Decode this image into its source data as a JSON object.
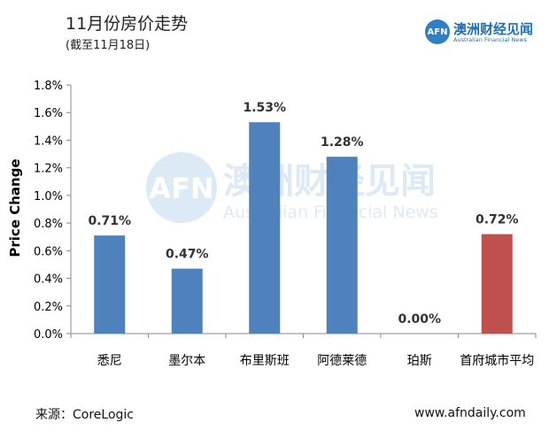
{
  "header": {
    "title": "11月份房价走势",
    "subtitle": "(截至11月18日)"
  },
  "logo": {
    "badge": "AFN",
    "name_cn": "澳洲财经见闻",
    "name_en": "Australian Financial News"
  },
  "watermark": {
    "badge": "AFN",
    "name_cn": "澳洲财经见闻",
    "name_en": "Australian Financial News"
  },
  "footer": {
    "source": "来源：CoreLogic",
    "website": "www.afndaily.com"
  },
  "colors": {
    "bar": "#4f81bd",
    "average_bar": "#c0504d",
    "brand": "#2f7fc4"
  },
  "chart_data": {
    "type": "bar",
    "title": "11月份房价走势",
    "subtitle": "(截至11月18日)",
    "xlabel": "",
    "ylabel": "Price Change",
    "ylim": [
      0,
      1.8
    ],
    "yticks": [
      0,
      0.2,
      0.4,
      0.6,
      0.8,
      1.0,
      1.2,
      1.4,
      1.6,
      1.8
    ],
    "ytick_labels": [
      "0.0%",
      "0.2%",
      "0.4%",
      "0.6%",
      "0.8%",
      "1.0%",
      "1.2%",
      "1.4%",
      "1.6%",
      "1.8%"
    ],
    "categories": [
      "悉尼",
      "墨尔本",
      "布里斯班",
      "阿德莱德",
      "珀斯",
      "首府城市平均"
    ],
    "values": [
      0.71,
      0.47,
      1.53,
      1.28,
      0.0,
      0.72
    ],
    "data_labels": [
      "0.71%",
      "0.47%",
      "1.53%",
      "1.28%",
      "0.00%",
      "0.72%"
    ],
    "grid": false,
    "legend": "none",
    "highlight_index": 5
  }
}
